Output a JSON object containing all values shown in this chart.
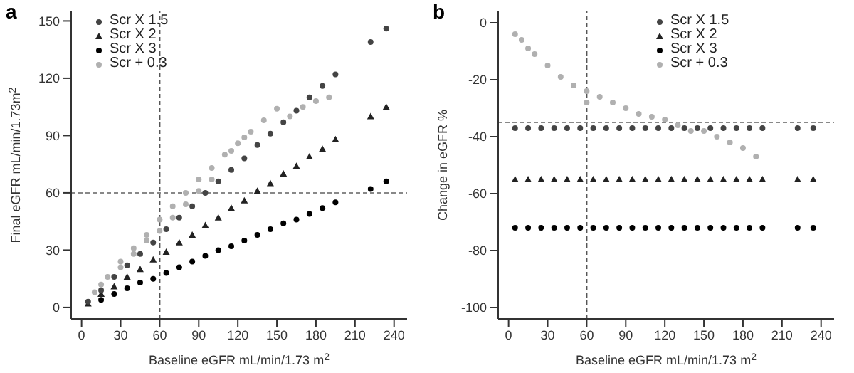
{
  "chart_data": [
    {
      "type": "scatter",
      "title": "a",
      "xlabel": "Baseline eGFR mL/min/1.73 m$^{2}$",
      "ylabel": "Final eGFR mL/min/1.73m$^{2}$",
      "xlim": [
        -8,
        250
      ],
      "xticks": [
        0,
        30,
        60,
        90,
        120,
        150,
        180,
        210,
        240
      ],
      "ylim": [
        -6,
        155
      ],
      "yticks": [
        0,
        30,
        60,
        90,
        120,
        150
      ],
      "grid": false,
      "legend": "top left",
      "ref_lines": [
        {
          "axis": "x",
          "value": 60,
          "line_style": "dashed",
          "color": "#555555"
        },
        {
          "axis": "y",
          "value": 60,
          "line_style": "dashed",
          "color": "#888888"
        }
      ],
      "series": [
        {
          "name": "Scr X 1.5",
          "color": "#444444",
          "marker": "circle",
          "x": [
            5,
            15,
            25,
            35,
            45,
            55,
            65,
            75,
            85,
            95,
            105,
            115,
            125,
            135,
            145,
            155,
            165,
            175,
            185,
            195,
            222,
            234
          ],
          "values": [
            3,
            9,
            16,
            22,
            28,
            34,
            41,
            47,
            53,
            60,
            66,
            72,
            78,
            85,
            91,
            97,
            103,
            110,
            116,
            122,
            139,
            146
          ]
        },
        {
          "name": "Scr X 2",
          "color": "#222222",
          "marker": "triangle",
          "x": [
            5,
            15,
            25,
            35,
            45,
            55,
            65,
            75,
            85,
            95,
            105,
            115,
            125,
            135,
            145,
            155,
            165,
            175,
            185,
            195,
            222,
            234
          ],
          "values": [
            2,
            7,
            11,
            16,
            20,
            25,
            29,
            34,
            38,
            43,
            47,
            52,
            56,
            61,
            65,
            70,
            74,
            79,
            83,
            88,
            100,
            105
          ]
        },
        {
          "name": "Scr X 3",
          "color": "#000000",
          "marker": "circle",
          "x": [
            15,
            25,
            35,
            45,
            55,
            65,
            75,
            85,
            95,
            105,
            115,
            125,
            135,
            145,
            155,
            165,
            175,
            185,
            195,
            222,
            234
          ],
          "values": [
            4,
            7,
            10,
            13,
            15,
            18,
            21,
            24,
            27,
            30,
            32,
            35,
            38,
            41,
            44,
            46,
            49,
            52,
            55,
            62,
            66
          ]
        },
        {
          "name": "Scr + 0.3",
          "color": "#b0b0b0",
          "marker": "circle",
          "x": [
            10,
            15,
            20,
            30,
            30,
            40,
            40,
            50,
            50,
            60,
            60,
            70,
            70,
            80,
            80,
            90,
            90,
            100,
            100,
            110,
            115,
            120,
            125,
            130,
            140,
            150,
            160,
            170,
            180,
            190
          ],
          "values": [
            8,
            12,
            16,
            24,
            21,
            31,
            28,
            38,
            35,
            46,
            40,
            53,
            47,
            60,
            54,
            67,
            61,
            73,
            67,
            80,
            82,
            86,
            89,
            92,
            98,
            104,
            100,
            105,
            108,
            110
          ]
        }
      ]
    },
    {
      "type": "scatter",
      "title": "b",
      "xlabel": "Baseline eGFR mL/min/1.73 m$^{2}$",
      "ylabel": "Change in eGFR %",
      "xlim": [
        -8,
        250
      ],
      "xticks": [
        0,
        30,
        60,
        90,
        120,
        150,
        180,
        210,
        240
      ],
      "ylim": [
        -104,
        4
      ],
      "yticks": [
        0,
        -20,
        -40,
        -60,
        -80,
        -100
      ],
      "grid": false,
      "legend": "top right",
      "ref_lines": [
        {
          "axis": "x",
          "value": 60,
          "line_style": "dashed",
          "color": "#555555"
        },
        {
          "axis": "y",
          "value": -35,
          "line_style": "dashed",
          "color": "#888888"
        }
      ],
      "series": [
        {
          "name": "Scr X 1.5",
          "color": "#444444",
          "marker": "circle",
          "x": [
            5,
            15,
            25,
            35,
            45,
            55,
            65,
            75,
            85,
            95,
            105,
            115,
            125,
            135,
            145,
            155,
            165,
            175,
            185,
            195,
            222,
            234
          ],
          "values": [
            -37,
            -37,
            -37,
            -37,
            -37,
            -37,
            -37,
            -37,
            -37,
            -37,
            -37,
            -37,
            -37,
            -37,
            -37,
            -37,
            -37,
            -37,
            -37,
            -37,
            -37,
            -37
          ]
        },
        {
          "name": "Scr X 2",
          "color": "#222222",
          "marker": "triangle",
          "x": [
            5,
            15,
            25,
            35,
            45,
            55,
            65,
            75,
            85,
            95,
            105,
            115,
            125,
            135,
            145,
            155,
            165,
            175,
            185,
            195,
            222,
            234
          ],
          "values": [
            -55,
            -55,
            -55,
            -55,
            -55,
            -55,
            -55,
            -55,
            -55,
            -55,
            -55,
            -55,
            -55,
            -55,
            -55,
            -55,
            -55,
            -55,
            -55,
            -55,
            -55,
            -55
          ]
        },
        {
          "name": "Scr X 3",
          "color": "#000000",
          "marker": "circle",
          "x": [
            5,
            15,
            25,
            35,
            45,
            55,
            65,
            75,
            85,
            95,
            105,
            115,
            125,
            135,
            145,
            155,
            165,
            175,
            185,
            195,
            222,
            234
          ],
          "values": [
            -72,
            -72,
            -72,
            -72,
            -72,
            -72,
            -72,
            -72,
            -72,
            -72,
            -72,
            -72,
            -72,
            -72,
            -72,
            -72,
            -72,
            -72,
            -72,
            -72,
            -72,
            -72
          ]
        },
        {
          "name": "Scr + 0.3",
          "color": "#b0b0b0",
          "marker": "circle",
          "x": [
            5,
            10,
            15,
            20,
            30,
            40,
            50,
            60,
            60,
            70,
            80,
            90,
            100,
            110,
            120,
            130,
            140,
            150,
            160,
            170,
            180,
            190
          ],
          "values": [
            -4,
            -6,
            -9,
            -11,
            -15,
            -19,
            -22,
            -24,
            -28,
            -26,
            -28,
            -30,
            -32,
            -33,
            -34,
            -36,
            -38,
            -38,
            -40,
            -42,
            -44,
            -47
          ]
        }
      ]
    }
  ]
}
